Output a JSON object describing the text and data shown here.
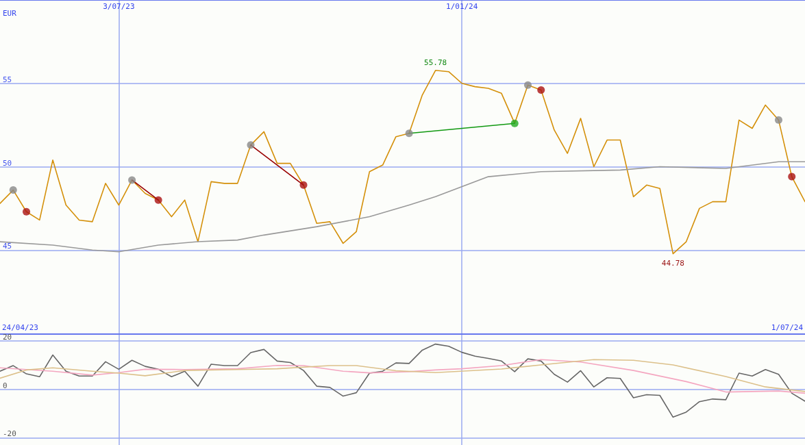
{
  "chart_data": [
    {
      "type": "line",
      "ylabel": "EUR",
      "marker": "none",
      "grid": true,
      "x": [
        "2023-05-01",
        "2023-05-08",
        "2023-05-15",
        "2023-05-22",
        "2023-05-29",
        "2023-06-05",
        "2023-06-12",
        "2023-06-19",
        "2023-06-26",
        "2023-07-03",
        "2023-07-10",
        "2023-07-17",
        "2023-07-24",
        "2023-07-31",
        "2023-08-07",
        "2023-08-14",
        "2023-08-21",
        "2023-08-28",
        "2023-09-04",
        "2023-09-11",
        "2023-09-18",
        "2023-09-25",
        "2023-10-02",
        "2023-10-09",
        "2023-10-16",
        "2023-10-23",
        "2023-10-30",
        "2023-11-06",
        "2023-11-13",
        "2023-11-20",
        "2023-11-27",
        "2023-12-04",
        "2023-12-11",
        "2023-12-18",
        "2023-12-25",
        "2024-01-01",
        "2024-01-08",
        "2024-01-15",
        "2024-01-22",
        "2024-01-29",
        "2024-02-05",
        "2024-02-12",
        "2024-02-19",
        "2024-02-26",
        "2024-03-04",
        "2024-03-11",
        "2024-03-18",
        "2024-03-25",
        "2024-04-01",
        "2024-04-08",
        "2024-04-15",
        "2024-04-22",
        "2024-04-29",
        "2024-05-06",
        "2024-05-13",
        "2024-05-20",
        "2024-05-27",
        "2024-06-03",
        "2024-06-10",
        "2024-06-17",
        "2024-06-24",
        "2024-07-01"
      ],
      "series": [
        {
          "color": "#d4900a",
          "values": [
            47.8,
            48.6,
            47.3,
            46.8,
            50.4,
            47.7,
            46.8,
            46.7,
            49.0,
            47.7,
            49.2,
            48.4,
            48.0,
            47.0,
            48.0,
            45.5,
            49.1,
            49.0,
            49.0,
            51.3,
            52.1,
            50.2,
            50.2,
            48.9,
            46.6,
            46.7,
            45.4,
            46.1,
            49.7,
            50.1,
            51.8,
            52.0,
            54.3,
            55.78,
            55.7,
            55.0,
            54.8,
            54.7,
            54.4,
            52.6,
            54.9,
            54.6,
            52.2,
            50.8,
            52.9,
            50.0,
            51.6,
            51.6,
            48.2,
            48.9,
            48.7,
            44.78,
            45.5,
            47.5,
            47.9,
            47.9,
            52.8,
            52.3,
            53.7,
            52.8,
            49.4,
            47.9
          ]
        },
        {
          "color": "#999999",
          "x": [
            "2023-05-01",
            "2023-05-29",
            "2023-06-19",
            "2023-07-03",
            "2023-07-24",
            "2023-08-14",
            "2023-09-04",
            "2023-09-18",
            "2023-10-16",
            "2023-11-13",
            "2023-12-04",
            "2023-12-18",
            "2024-01-15",
            "2024-02-12",
            "2024-03-25",
            "2024-04-15",
            "2024-05-20",
            "2024-06-17",
            "2024-07-01"
          ],
          "values": [
            45.5,
            45.3,
            45.0,
            44.9,
            45.3,
            45.5,
            45.6,
            45.9,
            46.4,
            47.0,
            47.7,
            48.2,
            49.4,
            49.7,
            49.8,
            50.0,
            49.9,
            50.3,
            50.3
          ]
        },
        {
          "color": "#990000",
          "x": [
            "2023-07-10",
            "2023-07-24"
          ],
          "values": [
            49.2,
            48.0
          ]
        },
        {
          "color": "#990000",
          "x": [
            "2023-09-11",
            "2023-10-09"
          ],
          "values": [
            51.3,
            48.9
          ]
        },
        {
          "color": "#119911",
          "x": [
            "2023-12-04",
            "2024-01-29"
          ],
          "values": [
            52.0,
            52.6
          ]
        },
        {
          "type": "scatter",
          "marker": "circle",
          "color": "#888888",
          "x": [
            "2023-05-08",
            "2023-07-10",
            "2023-09-11",
            "2023-12-04",
            "2024-02-05",
            "2024-06-17"
          ],
          "values": [
            48.6,
            49.2,
            51.3,
            52.0,
            54.9,
            52.8
          ]
        },
        {
          "type": "scatter",
          "marker": "circle",
          "color": "#aa1111",
          "x": [
            "2023-05-15",
            "2023-07-24",
            "2023-10-09",
            "2024-02-12",
            "2024-06-24"
          ],
          "values": [
            47.3,
            48.0,
            48.9,
            54.6,
            49.4
          ]
        },
        {
          "type": "scatter",
          "marker": "circle",
          "color": "#22aa22",
          "x": [
            "2024-01-29"
          ],
          "values": [
            52.6
          ]
        }
      ],
      "xlim": [
        "2023-05-01",
        "2024-07-01"
      ],
      "xticks": [
        {
          "value": "2023-07-03",
          "label": "3/07/23"
        },
        {
          "value": "2024-01-01",
          "label": "1/01/24"
        }
      ],
      "ylim": [
        40,
        60
      ],
      "yticks": [
        45,
        50,
        55
      ],
      "annotations": [
        {
          "text": "55.78",
          "x": "2023-12-18",
          "y": 55.78
        },
        {
          "text": "44.78",
          "x": "2024-04-22",
          "y": 44.78
        },
        "24/04/23",
        "1/07/24"
      ]
    },
    {
      "type": "line",
      "marker": "none",
      "grid": true,
      "tick_labels": "y",
      "x": [
        "2023-05-01",
        "2023-05-08",
        "2023-05-15",
        "2023-05-22",
        "2023-05-29",
        "2023-06-05",
        "2023-06-12",
        "2023-06-19",
        "2023-06-26",
        "2023-07-03",
        "2023-07-10",
        "2023-07-17",
        "2023-07-24",
        "2023-07-31",
        "2023-08-07",
        "2023-08-14",
        "2023-08-21",
        "2023-08-28",
        "2023-09-04",
        "2023-09-11",
        "2023-09-18",
        "2023-09-25",
        "2023-10-02",
        "2023-10-09",
        "2023-10-16",
        "2023-10-23",
        "2023-10-30",
        "2023-11-06",
        "2023-11-13",
        "2023-11-20",
        "2023-11-27",
        "2023-12-04",
        "2023-12-11",
        "2023-12-18",
        "2023-12-25",
        "2024-01-01",
        "2024-01-08",
        "2024-01-15",
        "2024-01-22",
        "2024-01-29",
        "2024-02-05",
        "2024-02-12",
        "2024-02-19",
        "2024-02-26",
        "2024-03-04",
        "2024-03-11",
        "2024-03-18",
        "2024-03-25",
        "2024-04-01",
        "2024-04-08",
        "2024-04-15",
        "2024-04-22",
        "2024-04-29",
        "2024-05-06",
        "2024-05-13",
        "2024-05-20",
        "2024-05-27",
        "2024-06-03",
        "2024-06-10",
        "2024-06-17",
        "2024-06-24",
        "2024-07-01"
      ],
      "series": [
        {
          "color": "#666666",
          "values": [
            7.5,
            9.8,
            6.4,
            5.2,
            14.2,
            7.5,
            5.5,
            5.5,
            11.4,
            8.3,
            12.0,
            9.5,
            8.3,
            5.2,
            7.5,
            1.3,
            10.4,
            9.8,
            9.8,
            15.2,
            16.5,
            11.7,
            11.1,
            7.8,
            1.3,
            0.8,
            -2.8,
            -1.4,
            6.7,
            7.5,
            10.9,
            10.7,
            16.2,
            18.7,
            17.8,
            15.3,
            13.7,
            12.8,
            11.7,
            7.3,
            12.6,
            11.7,
            6.2,
            3.0,
            7.7,
            1.0,
            4.8,
            4.5,
            -3.5,
            -2.2,
            -2.5,
            -11.5,
            -9.4,
            -5.1,
            -4.0,
            -4.3,
            6.7,
            5.5,
            8.2,
            6.2,
            -1.6,
            -4.9
          ]
        },
        {
          "color": "#f4a6c0",
          "x": [
            "2023-05-01",
            "2023-05-29",
            "2023-06-19",
            "2023-07-03",
            "2023-07-17",
            "2023-08-07",
            "2023-09-04",
            "2023-09-25",
            "2023-10-09",
            "2023-10-30",
            "2023-11-13",
            "2023-12-04",
            "2023-12-18",
            "2024-01-01",
            "2024-01-22",
            "2024-02-12",
            "2024-03-04",
            "2024-04-01",
            "2024-04-29",
            "2024-05-20",
            "2024-06-17",
            "2024-07-01"
          ],
          "values": [
            8.9,
            7.5,
            5.9,
            6.9,
            8.3,
            8.2,
            8.5,
            9.9,
            9.8,
            7.5,
            6.8,
            7.3,
            8.0,
            8.5,
            9.8,
            12.3,
            11.3,
            7.8,
            3.2,
            -1.1,
            -0.7,
            -1.6
          ]
        },
        {
          "color": "#dcc08a",
          "x": [
            "2023-05-01",
            "2023-05-15",
            "2023-05-29",
            "2023-06-19",
            "2023-07-03",
            "2023-07-17",
            "2023-08-07",
            "2023-09-04",
            "2023-09-25",
            "2023-10-23",
            "2023-11-06",
            "2023-11-27",
            "2023-12-18",
            "2024-01-22",
            "2024-02-12",
            "2024-03-11",
            "2024-04-01",
            "2024-04-22",
            "2024-05-20",
            "2024-06-10",
            "2024-07-01"
          ],
          "values": [
            4.6,
            8.0,
            8.9,
            7.5,
            6.7,
            5.6,
            7.8,
            8.2,
            8.5,
            9.8,
            9.8,
            7.7,
            6.9,
            8.4,
            10.1,
            12.3,
            12.0,
            10.1,
            5.3,
            1.0,
            -0.9
          ]
        }
      ],
      "xlim": [
        "2023-05-01",
        "2024-07-01"
      ],
      "xticks": [
        {
          "value": "2023-07-03",
          "label": null
        },
        {
          "value": "2024-01-01",
          "label": null
        }
      ],
      "ylim": [
        -23,
        23
      ],
      "yticks": [
        -20,
        0,
        20
      ]
    }
  ]
}
